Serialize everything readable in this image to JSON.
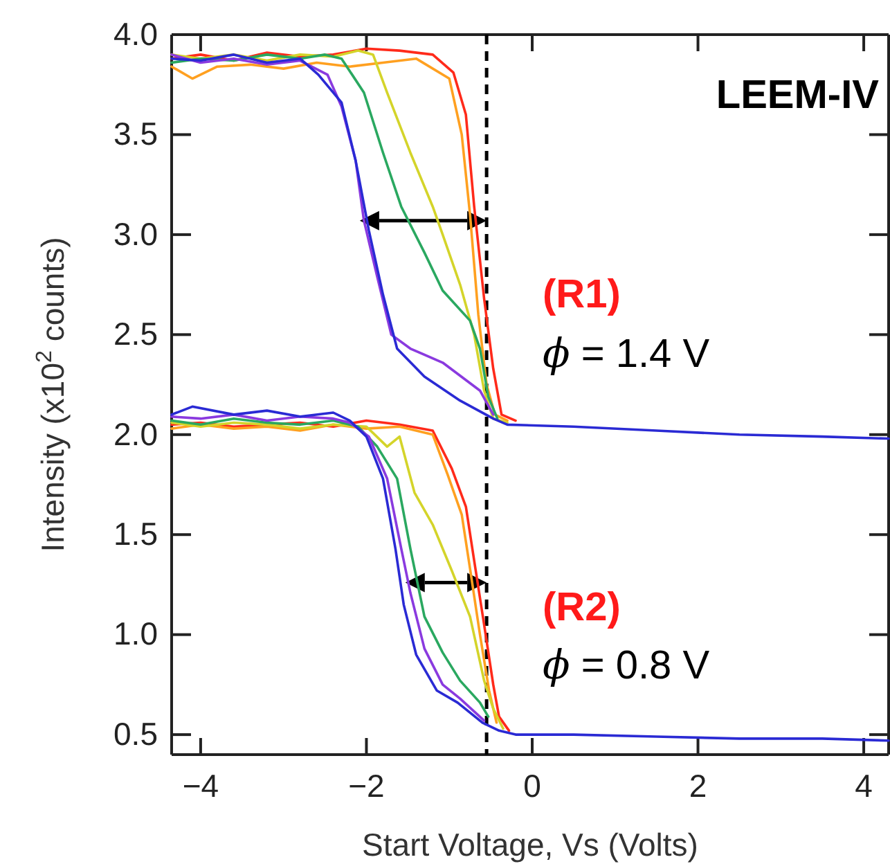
{
  "chart_data": {
    "type": "line",
    "xlabel": "Start Voltage, Vs (Volts)",
    "ylabel": "Intensity (x10$^{2}$ counts)",
    "xlim": [
      -4.35,
      4.3
    ],
    "ylim": [
      0.4,
      4.0
    ],
    "xticks": [
      -4,
      -2,
      0,
      2,
      4
    ],
    "yticks": [
      0.5,
      {
        "value": 1,
        "label": "1.0"
      },
      1.5,
      {
        "value": 2,
        "label": "2.0"
      },
      2.5,
      {
        "value": 3,
        "label": "3.0"
      },
      3.5,
      {
        "value": 4,
        "label": "4.0"
      }
    ],
    "grid": false,
    "marker": "none",
    "line_style": "solid",
    "ref_lines": [
      {
        "axis": "x",
        "value": -0.55,
        "color": "#000000",
        "line_style": "dashed"
      }
    ],
    "annotations": [
      "LEEM-IV",
      "(R1)",
      "ϕ = 1.4 V",
      "(R2)",
      "ϕ = 0.8 V"
    ],
    "series": [
      {
        "color": "#ff2a1a",
        "x": [
          -4.35,
          -4,
          -3.6,
          -3.2,
          -2.8,
          -2.4,
          -2,
          -1.6,
          -1.2,
          -0.95,
          -0.8,
          -0.7,
          -0.58,
          -0.47,
          -0.37,
          -0.2
        ],
        "values": [
          3.88,
          3.9,
          3.87,
          3.91,
          3.89,
          3.9,
          3.93,
          3.92,
          3.9,
          3.81,
          3.6,
          3.14,
          2.68,
          2.33,
          2.1,
          2.07
        ]
      },
      {
        "color": "#ffa020",
        "x": [
          -4.35,
          -4.1,
          -3.8,
          -3.4,
          -3,
          -2.6,
          -2.2,
          -1.8,
          -1.4,
          -1,
          -0.85,
          -0.75,
          -0.65,
          -0.55,
          -0.45,
          -0.3
        ],
        "values": [
          3.84,
          3.78,
          3.84,
          3.85,
          3.83,
          3.86,
          3.84,
          3.86,
          3.88,
          3.78,
          3.5,
          3.1,
          2.6,
          2.25,
          2.1,
          2.07
        ]
      },
      {
        "color": "#d4d42a",
        "x": [
          -4.35,
          -4,
          -3.6,
          -3.2,
          -2.8,
          -2.4,
          -2.1,
          -1.92,
          -1.75,
          -1.47,
          -1.2,
          -1.08,
          -0.87,
          -0.7,
          -0.58,
          -0.47,
          -0.3
        ],
        "values": [
          3.9,
          3.88,
          3.9,
          3.87,
          3.9,
          3.89,
          3.92,
          3.9,
          3.71,
          3.41,
          3.14,
          3,
          2.75,
          2.5,
          2.22,
          2.08,
          2.06
        ]
      },
      {
        "color": "#2aa860",
        "x": [
          -4.35,
          -4,
          -3.6,
          -3.2,
          -2.8,
          -2.5,
          -2.3,
          -2.03,
          -1.8,
          -1.58,
          -1.3,
          -1.08,
          -0.75,
          -0.63,
          -0.53,
          -0.42
        ],
        "values": [
          3.86,
          3.88,
          3.87,
          3.9,
          3.88,
          3.9,
          3.88,
          3.71,
          3.41,
          3.14,
          2.91,
          2.72,
          2.57,
          2.43,
          2.19,
          2.08
        ]
      },
      {
        "color": "#8a3adf",
        "x": [
          -4.35,
          -4,
          -3.6,
          -3.2,
          -2.8,
          -2.47,
          -2.3,
          -2.13,
          -2.03,
          -1.87,
          -1.7,
          -1.47,
          -1.08,
          -0.63,
          -0.47
        ],
        "values": [
          3.9,
          3.86,
          3.88,
          3.85,
          3.87,
          3.8,
          3.64,
          3.37,
          3.07,
          2.79,
          2.5,
          2.43,
          2.36,
          2.22,
          2.1
        ]
      },
      {
        "color": "#2a2ad4",
        "x": [
          -4.35,
          -4,
          -3.6,
          -3.2,
          -2.8,
          -2.58,
          -2.3,
          -2.13,
          -1.97,
          -1.8,
          -1.63,
          -1.3,
          -0.87,
          -0.47,
          -0.3,
          0.5,
          1.5,
          2.5,
          3.5,
          4.3
        ],
        "values": [
          3.88,
          3.87,
          3.9,
          3.86,
          3.88,
          3.8,
          3.66,
          3.37,
          3.02,
          2.7,
          2.43,
          2.29,
          2.17,
          2.08,
          2.05,
          2.04,
          2.02,
          2,
          1.99,
          1.98
        ]
      },
      {
        "color": "#ff2a1a",
        "x": [
          -4.35,
          -4,
          -3.6,
          -3.2,
          -2.8,
          -2.4,
          -2,
          -1.6,
          -1.2,
          -0.97,
          -0.8,
          -0.7,
          -0.58,
          -0.47,
          -0.4,
          -0.28
        ],
        "values": [
          2.05,
          2.06,
          2.04,
          2.05,
          2.06,
          2.04,
          2.07,
          2.05,
          2.02,
          1.83,
          1.64,
          1.37,
          1.05,
          0.75,
          0.59,
          0.52
        ]
      },
      {
        "color": "#ffa020",
        "x": [
          -4.35,
          -4,
          -3.6,
          -3.2,
          -2.8,
          -2.4,
          -2,
          -1.6,
          -1.2,
          -1.02,
          -0.85,
          -0.75,
          -0.63,
          -0.52,
          -0.43
        ],
        "values": [
          2.03,
          2.05,
          2.03,
          2.04,
          2.02,
          2.05,
          2.03,
          2.04,
          2,
          1.8,
          1.6,
          1.33,
          1,
          0.72,
          0.56
        ]
      },
      {
        "color": "#d4d42a",
        "x": [
          -4.35,
          -4,
          -3.6,
          -3.2,
          -2.8,
          -2.4,
          -2,
          -1.75,
          -1.6,
          -1.42,
          -1.2,
          -0.97,
          -0.75,
          -0.58,
          -0.47,
          -0.35
        ],
        "values": [
          2.06,
          2.04,
          2.06,
          2.05,
          2.03,
          2.05,
          2.04,
          1.94,
          1.99,
          1.71,
          1.55,
          1.32,
          1.09,
          0.77,
          0.63,
          0.53
        ]
      },
      {
        "color": "#2aa860",
        "x": [
          -4.35,
          -4,
          -3.6,
          -3.2,
          -2.8,
          -2.4,
          -2.1,
          -1.87,
          -1.63,
          -1.47,
          -1.3,
          -1.08,
          -0.87,
          -0.63,
          -0.53
        ],
        "values": [
          2.07,
          2.05,
          2.08,
          2.06,
          2.05,
          2.07,
          2.04,
          1.94,
          1.78,
          1.43,
          1.09,
          0.91,
          0.77,
          0.66,
          0.59
        ]
      },
      {
        "color": "#8a3adf",
        "x": [
          -4.35,
          -4,
          -3.6,
          -3.2,
          -2.8,
          -2.4,
          -2.2,
          -1.97,
          -1.75,
          -1.58,
          -1.47,
          -1.3,
          -1.08,
          -0.87,
          -0.58
        ],
        "values": [
          2.09,
          2.08,
          2.1,
          2.07,
          2.09,
          2.08,
          2.06,
          1.99,
          1.78,
          1.43,
          1.21,
          0.93,
          0.75,
          0.68,
          0.57
        ]
      },
      {
        "color": "#2a2ad4",
        "x": [
          -4.35,
          -4.1,
          -3.6,
          -3.2,
          -2.8,
          -2.4,
          -2.2,
          -2,
          -1.8,
          -1.65,
          -1.55,
          -1.4,
          -1.15,
          -0.9,
          -0.6,
          -0.4,
          -0.2,
          0.5,
          1.5,
          2.5,
          3.5,
          4.3
        ],
        "values": [
          2.1,
          2.14,
          2.1,
          2.12,
          2.09,
          2.11,
          2.07,
          1.99,
          1.78,
          1.43,
          1.15,
          0.9,
          0.72,
          0.66,
          0.56,
          0.52,
          0.5,
          0.5,
          0.49,
          0.48,
          0.48,
          0.47
        ]
      }
    ]
  }
}
